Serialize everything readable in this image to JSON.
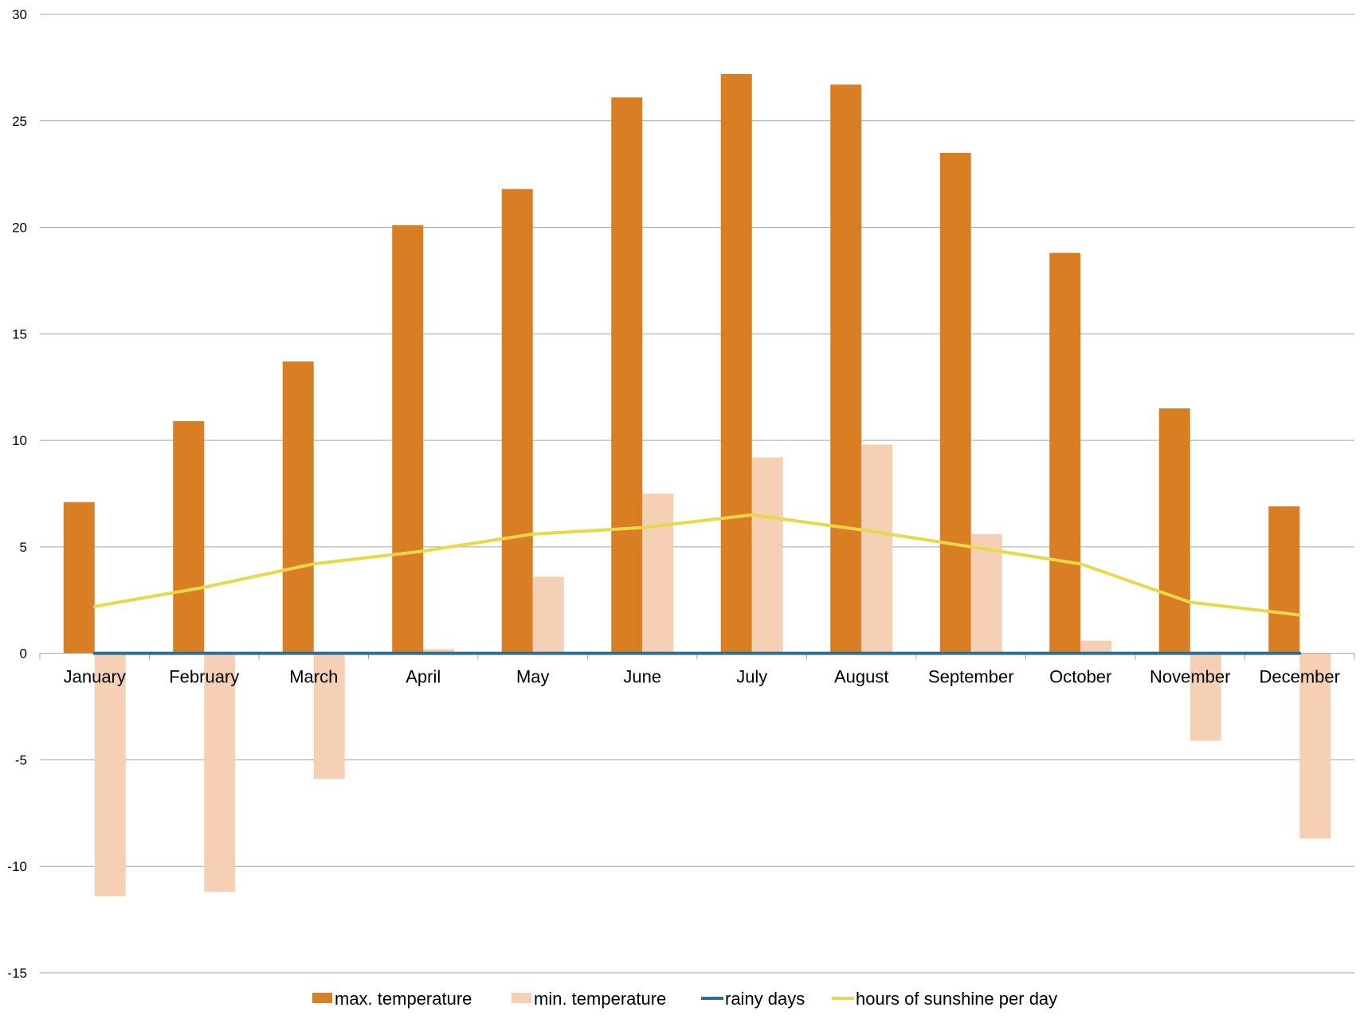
{
  "chart_data": {
    "type": "bar",
    "categories": [
      "January",
      "February",
      "March",
      "April",
      "May",
      "June",
      "July",
      "August",
      "September",
      "October",
      "November",
      "December"
    ],
    "series": [
      {
        "name": "max.  temperature",
        "kind": "bar",
        "color": "#D97E22",
        "values": [
          7.1,
          10.9,
          13.7,
          20.1,
          21.8,
          26.1,
          27.2,
          26.7,
          23.5,
          18.8,
          11.5,
          6.9
        ]
      },
      {
        "name": "min. temperature",
        "kind": "bar",
        "color": "#F5D0B5",
        "values": [
          -11.4,
          -11.2,
          -5.9,
          0.2,
          3.6,
          7.5,
          9.2,
          9.8,
          5.6,
          0.6,
          -4.1,
          -8.7
        ]
      },
      {
        "name": "rainy days",
        "kind": "line",
        "color": "#2A6F97",
        "values": [
          0,
          0,
          0,
          0,
          0,
          0,
          0,
          0,
          0,
          0,
          0,
          0
        ]
      },
      {
        "name": "hours of sunshine per day",
        "kind": "line",
        "color": "#E8D84A",
        "values": [
          2.2,
          3.1,
          4.2,
          4.8,
          5.6,
          5.9,
          6.5,
          5.8,
          5.0,
          4.2,
          2.4,
          1.8
        ]
      }
    ],
    "y_ticks": [
      "30",
      "25",
      "20",
      "15",
      "10",
      "5",
      "0",
      "-5",
      "-10",
      "-15"
    ],
    "ylim": [
      -15,
      30
    ],
    "grid": true,
    "legend_position": "bottom-center"
  }
}
